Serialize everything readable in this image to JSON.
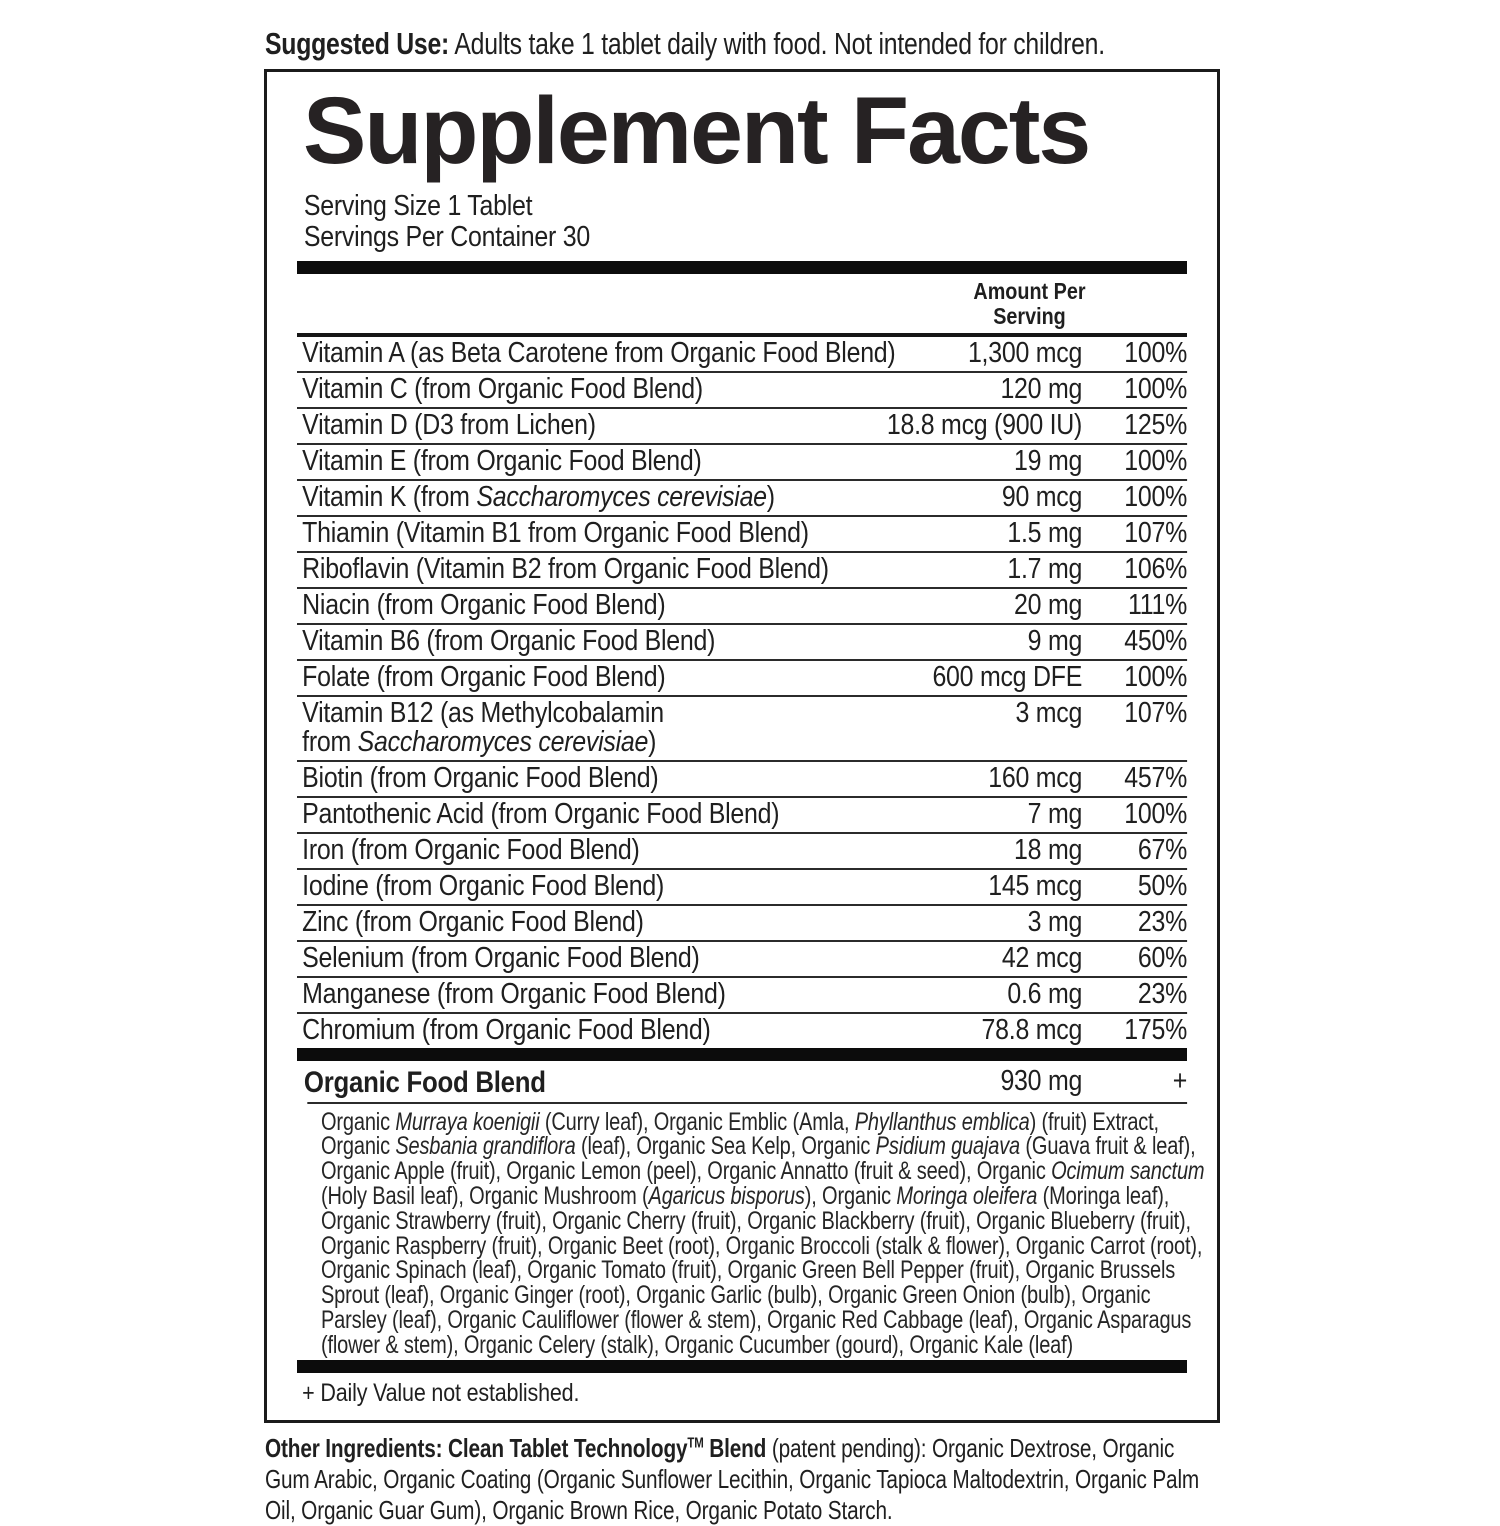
{
  "suggested_use": {
    "label": "Suggested Use:",
    "text": " Adults take 1 tablet daily with food. Not intended for children."
  },
  "panel": {
    "title": "Supplement Facts",
    "serving_size": "Serving Size 1 Tablet",
    "servings_per_container": "Servings Per Container 30",
    "amount_header_line1": "Amount Per",
    "amount_header_line2": "Serving",
    "rows": [
      {
        "name": [
          {
            "t": "Vitamin A (as Beta Carotene from Organic Food Blend)"
          }
        ],
        "amount": "1,300 mcg",
        "dv": "100%"
      },
      {
        "name": [
          {
            "t": "Vitamin C (from Organic Food Blend)"
          }
        ],
        "amount": "120 mg",
        "dv": "100%"
      },
      {
        "name": [
          {
            "t": "Vitamin D (D3 from Lichen)"
          }
        ],
        "amount": "18.8 mcg (900 IU)",
        "dv": "125%"
      },
      {
        "name": [
          {
            "t": "Vitamin E (from Organic Food Blend)"
          }
        ],
        "amount": "19 mg",
        "dv": "100%"
      },
      {
        "name": [
          {
            "t": "Vitamin K (from "
          },
          {
            "t": "Saccharomyces cerevisiae",
            "i": true
          },
          {
            "t": ")"
          }
        ],
        "amount": "90 mcg",
        "dv": "100%"
      },
      {
        "name": [
          {
            "t": "Thiamin (Vitamin B1 from Organic Food Blend)"
          }
        ],
        "amount": "1.5 mg",
        "dv": "107%"
      },
      {
        "name": [
          {
            "t": "Riboflavin (Vitamin B2 from Organic Food Blend)"
          }
        ],
        "amount": "1.7 mg",
        "dv": "106%"
      },
      {
        "name": [
          {
            "t": "Niacin (from Organic Food Blend)"
          }
        ],
        "amount": "20 mg",
        "dv": "111%"
      },
      {
        "name": [
          {
            "t": "Vitamin B6 (from Organic Food Blend)"
          }
        ],
        "amount": "9 mg",
        "dv": "450%"
      },
      {
        "name": [
          {
            "t": "Folate (from Organic Food Blend)"
          }
        ],
        "amount": "600 mcg DFE",
        "dv": "100%"
      },
      {
        "name": [
          {
            "t": "Vitamin B12 (as Methylcobalamin"
          },
          {
            "br": true
          },
          {
            "t": "from "
          },
          {
            "t": "Saccharomyces cerevisiae",
            "i": true
          },
          {
            "t": ")"
          }
        ],
        "amount": "3 mcg",
        "dv": "107%"
      },
      {
        "name": [
          {
            "t": "Biotin (from Organic Food Blend)"
          }
        ],
        "amount": "160 mcg",
        "dv": "457%"
      },
      {
        "name": [
          {
            "t": "Pantothenic Acid (from Organic Food Blend)"
          }
        ],
        "amount": "7 mg",
        "dv": "100%"
      },
      {
        "name": [
          {
            "t": "Iron (from Organic Food Blend)"
          }
        ],
        "amount": "18 mg",
        "dv": "67%"
      },
      {
        "name": [
          {
            "t": "Iodine (from Organic Food Blend)"
          }
        ],
        "amount": "145 mcg",
        "dv": "50%"
      },
      {
        "name": [
          {
            "t": "Zinc (from Organic Food Blend)"
          }
        ],
        "amount": "3 mg",
        "dv": "23%"
      },
      {
        "name": [
          {
            "t": "Selenium (from Organic Food Blend)"
          }
        ],
        "amount": "42 mcg",
        "dv": "60%"
      },
      {
        "name": [
          {
            "t": "Manganese (from Organic Food Blend)"
          }
        ],
        "amount": "0.6 mg",
        "dv": "23%"
      },
      {
        "name": [
          {
            "t": "Chromium (from Organic Food Blend)"
          }
        ],
        "amount": "78.8 mcg",
        "dv": "175%"
      }
    ],
    "blend": {
      "name": "Organic Food Blend",
      "amount": "930 mg",
      "dv": "+",
      "ingredients": [
        {
          "t": "Organic "
        },
        {
          "t": "Murraya koenigii",
          "i": true
        },
        {
          "t": " (Curry leaf), Organic Emblic (Amla, "
        },
        {
          "t": "Phyllanthus emblica",
          "i": true
        },
        {
          "t": ") (fruit) Extract, Organic "
        },
        {
          "t": "Sesbania grandiflora",
          "i": true
        },
        {
          "t": " (leaf), Organic Sea Kelp, Organic "
        },
        {
          "t": "Psidium guajava",
          "i": true
        },
        {
          "t": " (Guava fruit & leaf), Organic Apple (fruit), Organic Lemon (peel), Organic Annatto (fruit & seed), Organic "
        },
        {
          "t": "Ocimum sanctum",
          "i": true
        },
        {
          "t": " (Holy Basil leaf), Organic Mushroom ("
        },
        {
          "t": "Agaricus bisporus",
          "i": true
        },
        {
          "t": "), Organic "
        },
        {
          "t": "Moringa oleifera",
          "i": true
        },
        {
          "t": " (Moringa leaf), Organic Strawberry (fruit), Organic Cherry (fruit), Organic Blackberry (fruit), Organic Blueberry (fruit), Organic Raspberry (fruit), Organic Beet (root), Organic Broccoli (stalk & flower), Organic Carrot (root), Organic Spinach (leaf), Organic Tomato (fruit), Organic Green Bell Pepper (fruit), Organic Brussels Sprout (leaf), Organic Ginger (root), Organic Garlic (bulb), Organic Green Onion (bulb), Organic Parsley (leaf), Organic Cauliflower (flower & stem), Organic Red Cabbage (leaf), Organic Asparagus (flower & stem), Organic Celery (stalk), Organic Cucumber (gourd), Organic Kale (leaf)"
        }
      ]
    },
    "footnote": "+ Daily Value not established."
  },
  "other_ingredients": {
    "bold_prefix": "Other Ingredients: Clean Tablet Technology",
    "tm": "TM",
    "bold_suffix": " Blend",
    "text": " (patent pending): Organic Dextrose, Organic Gum Arabic, Organic Coating (Organic Sunflower Lecithin, Organic Tapioca Maltodextrin, Organic Palm Oil, Organic Guar Gum), Organic Brown Rice, Organic Potato Starch."
  },
  "colors": {
    "ink": "#1f1f1f",
    "bar": "#0c0c0c",
    "background": "#ffffff"
  }
}
